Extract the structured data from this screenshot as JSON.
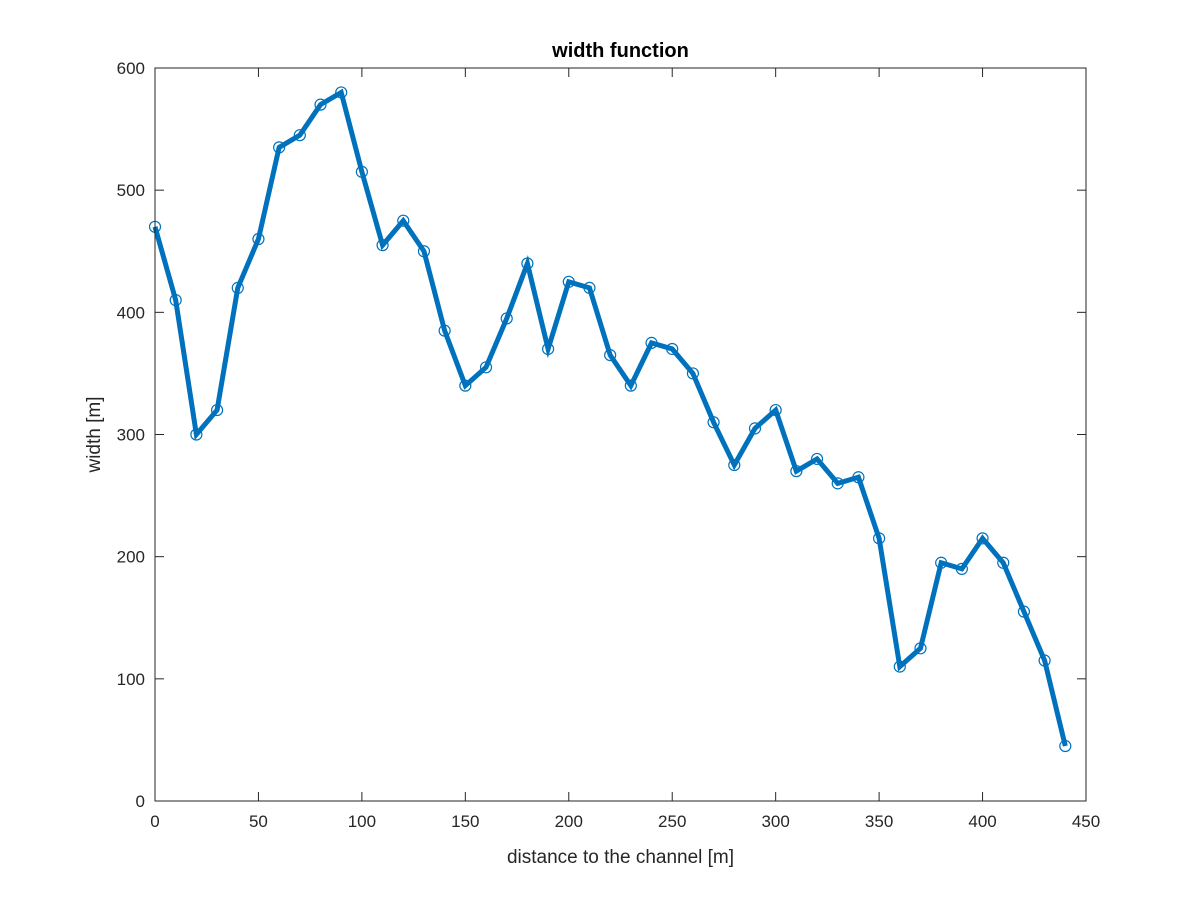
{
  "chart_data": {
    "type": "line",
    "title": "width function",
    "xlabel": "distance to the channel [m]",
    "ylabel": "width [m]",
    "xlim": [
      0,
      450
    ],
    "ylim": [
      0,
      600
    ],
    "xticks": [
      0,
      50,
      100,
      150,
      200,
      250,
      300,
      350,
      400,
      450
    ],
    "yticks": [
      0,
      100,
      200,
      300,
      400,
      500,
      600
    ],
    "grid": false,
    "legend": "none",
    "series": [
      {
        "color": "#0072BD",
        "marker": "circle",
        "x": [
          0,
          10,
          20,
          30,
          40,
          50,
          60,
          70,
          80,
          90,
          100,
          110,
          120,
          130,
          140,
          150,
          160,
          170,
          180,
          190,
          200,
          210,
          220,
          230,
          240,
          250,
          260,
          270,
          280,
          290,
          300,
          310,
          320,
          330,
          340,
          350,
          360,
          370,
          380,
          390,
          400,
          410,
          420,
          430,
          440
        ],
        "values": [
          470,
          410,
          300,
          320,
          420,
          460,
          535,
          545,
          570,
          580,
          515,
          455,
          475,
          450,
          385,
          340,
          355,
          395,
          440,
          370,
          425,
          420,
          365,
          340,
          375,
          370,
          350,
          310,
          275,
          305,
          320,
          270,
          280,
          260,
          265,
          215,
          110,
          125,
          195,
          190,
          215,
          195,
          155,
          115,
          45
        ]
      }
    ]
  }
}
